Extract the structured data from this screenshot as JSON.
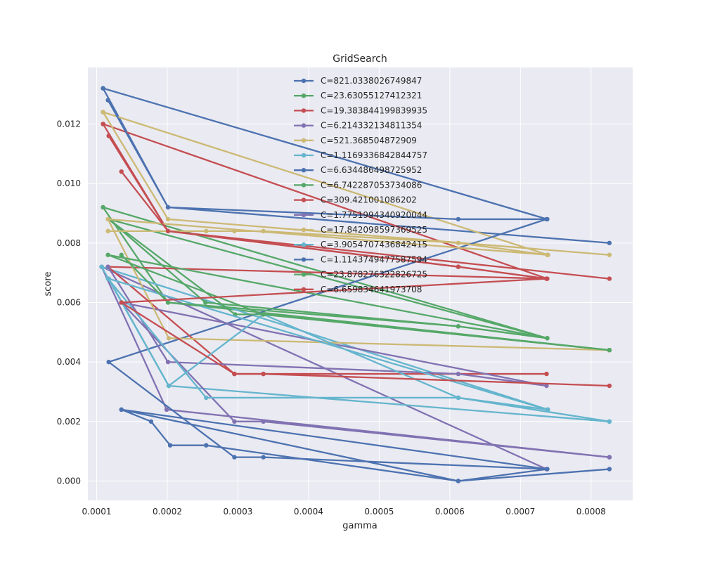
{
  "chart_data": {
    "type": "line",
    "title": "GridSearch",
    "xlabel": "gamma",
    "ylabel": "score",
    "xlim": [
      8.75e-05,
      0.000859
    ],
    "ylim": [
      -0.00065,
      0.0139
    ],
    "xticks": [
      {
        "value": 0.0001,
        "label": "0.0001"
      },
      {
        "value": 0.0002,
        "label": "0.0002"
      },
      {
        "value": 0.0003,
        "label": "0.0003"
      },
      {
        "value": 0.0004,
        "label": "0.0004"
      },
      {
        "value": 0.0005,
        "label": "0.0005"
      },
      {
        "value": 0.0006,
        "label": "0.0006"
      },
      {
        "value": 0.0007,
        "label": "0.0007"
      },
      {
        "value": 0.0008,
        "label": "0.0008"
      }
    ],
    "yticks": [
      {
        "value": 0.0,
        "label": "0.000"
      },
      {
        "value": 0.002,
        "label": "0.002"
      },
      {
        "value": 0.004,
        "label": "0.004"
      },
      {
        "value": 0.006,
        "label": "0.006"
      },
      {
        "value": 0.008,
        "label": "0.008"
      },
      {
        "value": 0.01,
        "label": "0.010"
      },
      {
        "value": 0.012,
        "label": "0.012"
      }
    ],
    "grid": true,
    "legend_position": "upper-center",
    "background": "#eaeaf2",
    "series": [
      {
        "name": "C=821.0338026749847",
        "color": "#4c72b0",
        "x": [
          0.000109,
          0.000738,
          0.000109,
          0.000201,
          0.000826
        ],
        "y": [
          0.0132,
          0.0088,
          0.0132,
          0.0092,
          0.008
        ]
      },
      {
        "name": "C=23.63055127412321",
        "color": "#55a868",
        "x": [
          0.000109,
          0.000738,
          0.000109,
          0.000201,
          0.000826
        ],
        "y": [
          0.0092,
          0.0048,
          0.0092,
          0.006,
          0.0044
        ]
      },
      {
        "name": "C=19.383844199839935",
        "color": "#c44e52",
        "x": [
          0.000109,
          0.000738,
          0.000109,
          0.000201,
          0.000826
        ],
        "y": [
          0.012,
          0.0068,
          0.012,
          0.0084,
          0.0068
        ]
      },
      {
        "name": "C=6.214332134811354",
        "color": "#8172b2",
        "x": [
          0.000107,
          0.000737,
          0.000107,
          0.000199,
          0.000826
        ],
        "y": [
          0.0072,
          0.0004,
          0.0072,
          0.0024,
          0.0008
        ]
      },
      {
        "name": "C=521.368504872909",
        "color": "#ccb974",
        "x": [
          0.000109,
          0.000739,
          0.000109,
          0.000201,
          0.000826
        ],
        "y": [
          0.0124,
          0.0076,
          0.0124,
          0.0088,
          0.0076
        ]
      },
      {
        "name": "C=1.1169336842844757",
        "color": "#64b5cd",
        "x": [
          0.000107,
          0.000739,
          0.000107,
          0.000202,
          0.000826
        ],
        "y": [
          0.0072,
          0.0024,
          0.0072,
          0.0032,
          0.002
        ]
      },
      {
        "name": "C=6.634486498725952",
        "color": "#4c72b0",
        "x": [
          0.000116,
          0.000201,
          0.000612,
          0.000737,
          0.000117,
          0.000295,
          0.000336,
          0.000738
        ],
        "y": [
          0.0128,
          0.0092,
          0.0088,
          0.0088,
          0.004,
          0.0008,
          0.0008,
          0.0004
        ]
      },
      {
        "name": "C=6.742287053734086",
        "color": "#55a868",
        "x": [
          0.000117,
          0.000254,
          0.000612,
          0.000738,
          0.000117,
          0.000296,
          0.000336,
          0.000826
        ],
        "y": [
          0.0088,
          0.006,
          0.0052,
          0.0048,
          0.0088,
          0.0056,
          0.0056,
          0.0044
        ]
      },
      {
        "name": "C=309.421001086202",
        "color": "#c44e52",
        "x": [
          0.000117,
          0.000201,
          0.000612,
          0.000737,
          0.000116,
          0.000295,
          0.000336,
          0.000737
        ],
        "y": [
          0.0116,
          0.0084,
          0.0072,
          0.0068,
          0.0072,
          0.0036,
          0.0036,
          0.0036
        ]
      },
      {
        "name": "C=1.7751994340920044",
        "color": "#8172b2",
        "x": [
          0.000116,
          0.000201,
          0.000612,
          0.000737,
          0.000135,
          0.000295,
          0.000336,
          0.000826
        ],
        "y": [
          0.0072,
          0.004,
          0.0036,
          0.0032,
          0.006,
          0.002,
          0.002,
          0.0008
        ]
      },
      {
        "name": "C=17.842098597369525",
        "color": "#ccb974",
        "x": [
          0.000116,
          0.000255,
          0.000295,
          0.000336,
          0.000612,
          0.000738,
          0.000116,
          0.000202,
          0.000826
        ],
        "y": [
          0.0084,
          0.0084,
          0.0084,
          0.0084,
          0.008,
          0.0076,
          0.0088,
          0.0048,
          0.0044
        ]
      },
      {
        "name": "C=3.9054707436842415",
        "color": "#64b5cd",
        "x": [
          0.000116,
          0.000255,
          0.000612,
          0.000738,
          0.000117,
          0.000202,
          0.000336,
          0.000612,
          0.000826
        ],
        "y": [
          0.0068,
          0.0028,
          0.0028,
          0.0024,
          0.0068,
          0.0032,
          0.0056,
          0.0028,
          0.002
        ]
      },
      {
        "name": "C=1.1143749477587594",
        "color": "#4c72b0",
        "x": [
          0.000135,
          0.000177,
          0.000204,
          0.000255,
          0.000612,
          0.000738,
          0.000135,
          0.000612,
          0.000826
        ],
        "y": [
          0.0024,
          0.002,
          0.0012,
          0.0012,
          0.0,
          0.0004,
          0.0024,
          0.0,
          0.0004
        ]
      },
      {
        "name": "C=23.878276322826725",
        "color": "#55a868",
        "x": [
          0.000135,
          0.000201,
          0.000612,
          0.000738,
          0.000116,
          0.000336,
          0.000826
        ],
        "y": [
          0.0076,
          0.006,
          0.0052,
          0.0048,
          0.0076,
          0.0056,
          0.0044
        ]
      },
      {
        "name": "C=6.659834641973708",
        "color": "#c44e52",
        "x": [
          0.000135,
          0.000201,
          0.000612,
          0.000737,
          0.000135,
          0.000295,
          0.000336,
          0.000826
        ],
        "y": [
          0.0104,
          0.0084,
          0.0072,
          0.0068,
          0.006,
          0.0036,
          0.0036,
          0.0032
        ]
      }
    ]
  }
}
